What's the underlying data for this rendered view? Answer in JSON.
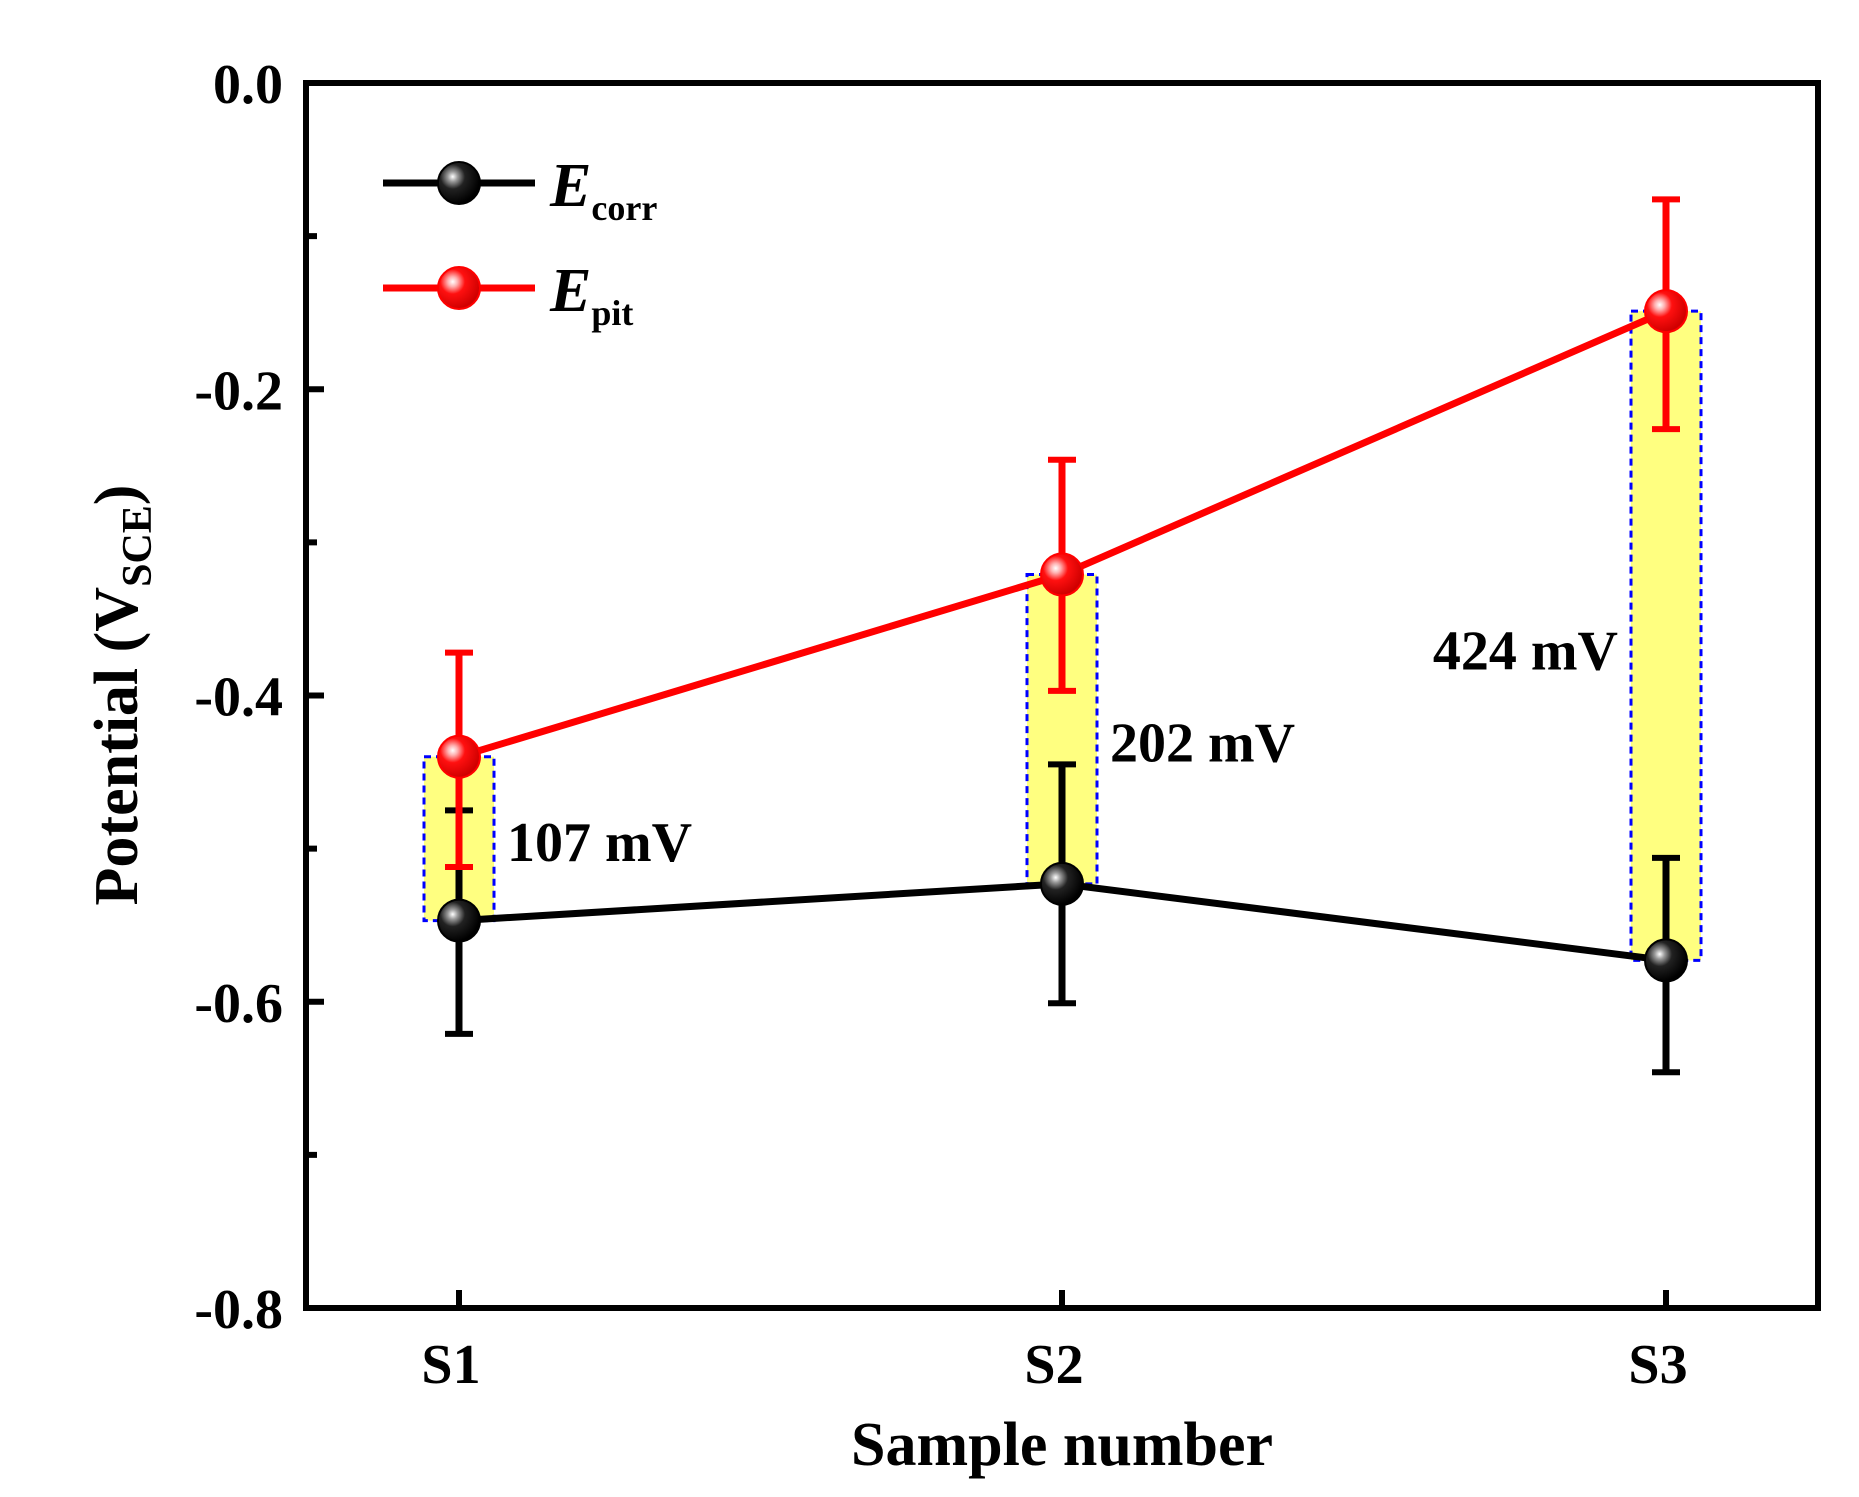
{
  "chart_data": {
    "type": "line",
    "title": "",
    "xlabel": "Sample number",
    "ylabel": {
      "main": "Potential (V",
      "sub": "SCE",
      "close": ")"
    },
    "categories": [
      "S1",
      "S2",
      "S3"
    ],
    "ylim": [
      -0.8,
      0.0
    ],
    "yticks": [
      0.0,
      -0.2,
      -0.4,
      -0.6,
      -0.8
    ],
    "ytick_labels": [
      "0.0",
      "-0.2",
      "-0.4",
      "-0.6",
      "-0.8"
    ],
    "yminor_ticks": [
      -0.1,
      -0.3,
      -0.5,
      -0.7
    ],
    "legend_position": "top-left",
    "series": [
      {
        "name": "E_corr",
        "legend_main": "E",
        "legend_sub": "corr",
        "color": "#000000",
        "values": [
          -0.547,
          -0.523,
          -0.573
        ],
        "err_upper": [
          -0.475,
          -0.445,
          -0.506
        ],
        "err_lower": [
          -0.621,
          -0.601,
          -0.646
        ]
      },
      {
        "name": "E_pit",
        "legend_main": "E",
        "legend_sub": "pit",
        "color": "#ff0000",
        "values": [
          -0.44,
          -0.321,
          -0.149
        ],
        "err_upper": [
          -0.372,
          -0.246,
          -0.076
        ],
        "err_lower": [
          -0.512,
          -0.397,
          -0.226
        ]
      }
    ],
    "annotations": [
      {
        "category": "S1",
        "text": "107 mV",
        "label_side": "right",
        "label_value": -0.495
      },
      {
        "category": "S2",
        "text": "202 mV",
        "label_side": "right",
        "label_value": -0.43
      },
      {
        "category": "S3",
        "text": "424 mV",
        "label_side": "left",
        "label_value": -0.37
      }
    ],
    "difference_box_fill": "#ffff80",
    "difference_box_stroke": "#0000ff"
  }
}
